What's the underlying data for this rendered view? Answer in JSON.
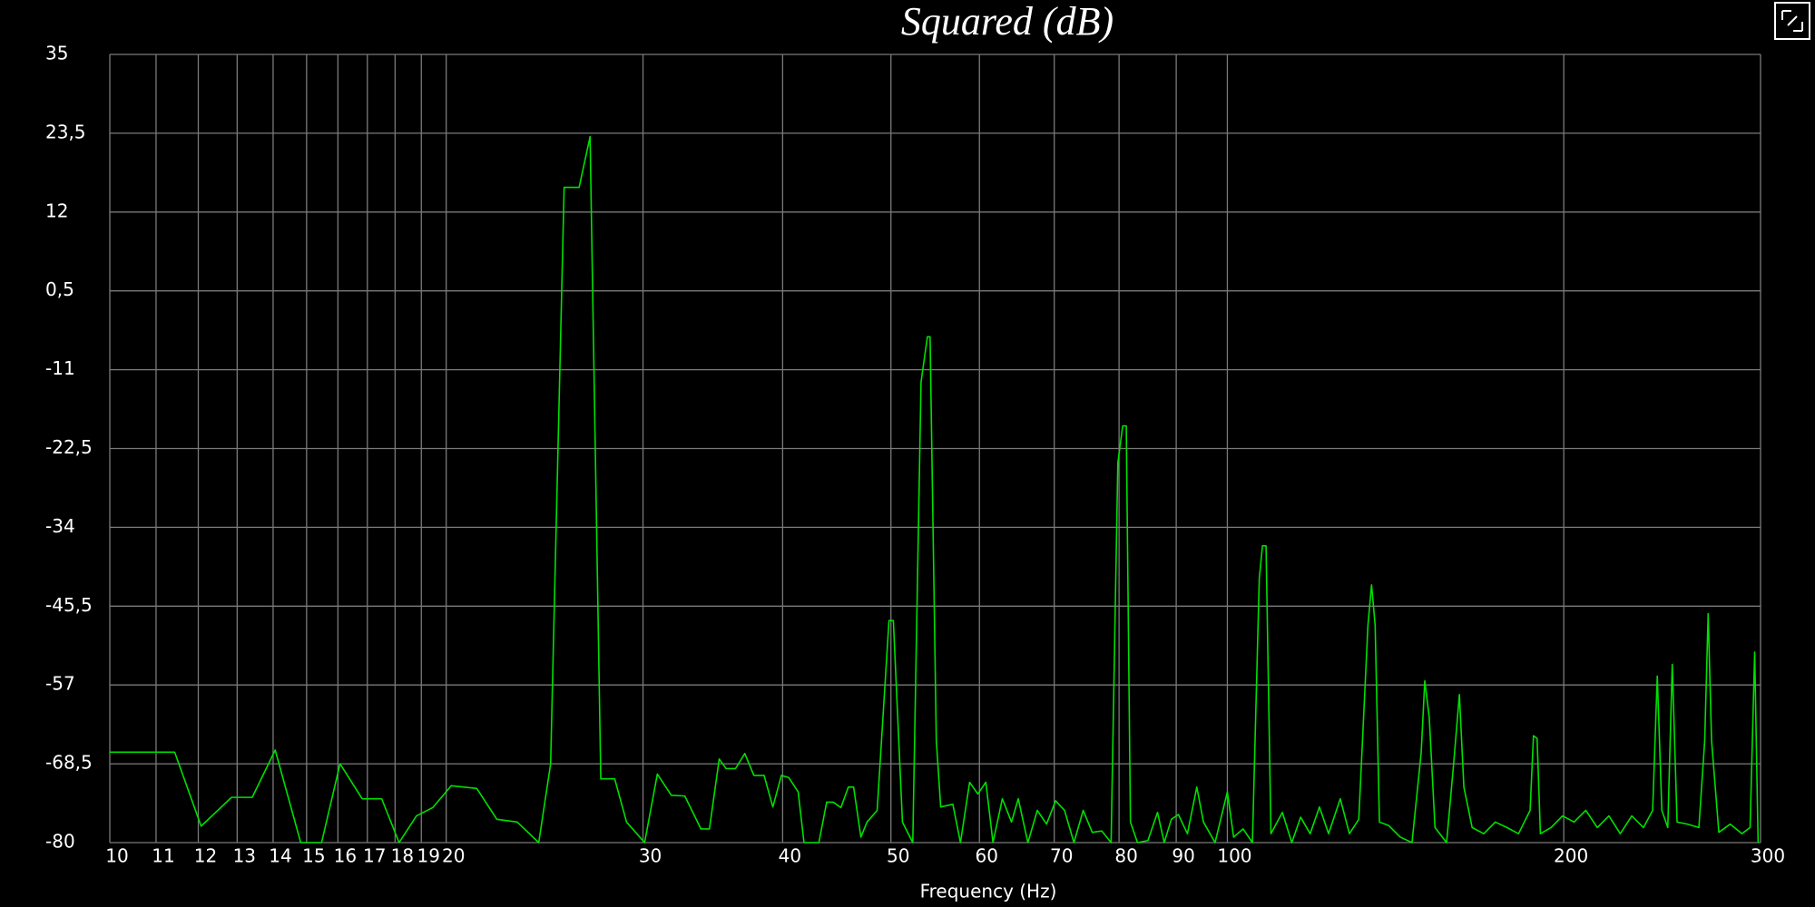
{
  "chart_data": {
    "type": "line",
    "title": "Squared (dB)",
    "x_label": "Frequency (Hz)",
    "log_x": true,
    "grid": true,
    "xlim": [
      10,
      300
    ],
    "xticks": [
      10,
      11,
      12,
      13,
      14,
      15,
      16,
      17,
      18,
      19,
      20,
      30,
      40,
      50,
      60,
      70,
      80,
      90,
      100,
      200,
      300
    ],
    "ylim": [
      -80,
      35
    ],
    "yticks": [
      -80,
      {
        "value": -68.5,
        "label": "-68,5"
      },
      -57,
      {
        "value": -45.5,
        "label": "-45,5"
      },
      -34,
      {
        "value": -22.5,
        "label": "-22,5"
      },
      -11,
      {
        "value": 0.5,
        "label": "0,5"
      },
      12,
      {
        "value": 23.5,
        "label": "23,5"
      },
      35
    ],
    "series": [
      {
        "color": "#00e000",
        "x": [
          10,
          11.43,
          12.07,
          12.85,
          13.41,
          14.06,
          14.82,
          15.47,
          16.07,
          16.82,
          17.51,
          18.15,
          18.81,
          19.45,
          20.21,
          21.3,
          22.2,
          23.15,
          24.2,
          24.8,
          25.5,
          26.3,
          26.9,
          27.5,
          28.3,
          29.0,
          30.1,
          30.9,
          31.8,
          32.7,
          33.8,
          34.4,
          35.1,
          35.6,
          36.3,
          37.0,
          37.7,
          38.5,
          39.2,
          39.9,
          40.5,
          41.3,
          41.8,
          43.1,
          43.8,
          44.4,
          45.1,
          45.8,
          46.3,
          47.0,
          47.6,
          48.6,
          49.8,
          50.25,
          51.2,
          52.3,
          53.2,
          53.9,
          54.2,
          54.9,
          55.4,
          56.8,
          57.7,
          58.8,
          59.8,
          60.8,
          61.7,
          62.9,
          64.1,
          65.0,
          66.3,
          67.6,
          68.9,
          70.2,
          71.5,
          72.9,
          74.3,
          75.7,
          77.2,
          78.7,
          79.8,
          80.6,
          81.2,
          81.9,
          83.1,
          84.9,
          86.6,
          87.8,
          89.1,
          90.4,
          92.1,
          93.9,
          95.2,
          97.5,
          100.0,
          101.3,
          103.3,
          105.3,
          106.8,
          107.5,
          108.3,
          109.4,
          112.0,
          114.2,
          116.3,
          118.6,
          120.9,
          123.2,
          126.2,
          128.6,
          131.1,
          133.6,
          134.6,
          135.6,
          136.8,
          139.4,
          142.8,
          146.3,
          149.1,
          150.2,
          151.6,
          153.4,
          157.1,
          159.4,
          161.3,
          162.8,
          165.6,
          169.6,
          173.7,
          177.9,
          182.2,
          186.6,
          187.9,
          189.3,
          190.6,
          194.8,
          199.5,
          204.3,
          209.3,
          214.3,
          219.5,
          224.7,
          230.1,
          235.7,
          240.2,
          242.5,
          244.8,
          247.8,
          250.1,
          252.6,
          258.0,
          264.2,
          267.4,
          269.3,
          271.2,
          275.3,
          281.8,
          288.7,
          293.6,
          296.4,
          298.5
        ],
        "values": [
          -66.8,
          -66.8,
          -77.6,
          -73.4,
          -73.4,
          -66.5,
          -80,
          -80,
          -68.5,
          -73.6,
          -73.6,
          -80,
          -76.1,
          -74.9,
          -71.7,
          -72.1,
          -76.6,
          -77.0,
          -80,
          -68.5,
          15.6,
          15.6,
          23.0,
          -70.7,
          -70.7,
          -77,
          -80,
          -70,
          -73.1,
          -73.2,
          -78,
          -78,
          -67.8,
          -69.2,
          -69.2,
          -67,
          -70.2,
          -70.2,
          -74.8,
          -70.2,
          -70.5,
          -72.6,
          -80,
          -80,
          -74.1,
          -74.1,
          -74.9,
          -71.9,
          -71.9,
          -79.2,
          -77,
          -75.3,
          -47.6,
          -47.6,
          -77,
          -80,
          -12.8,
          -6.2,
          -6.2,
          -65.1,
          -74.8,
          -74.4,
          -80,
          -71.2,
          -72.9,
          -71.2,
          -80,
          -73.6,
          -77,
          -73.6,
          -80,
          -75.3,
          -77.3,
          -73.9,
          -75.3,
          -80,
          -75.3,
          -78.5,
          -78.3,
          -80,
          -24.6,
          -19.2,
          -19.2,
          -77,
          -80,
          -79.7,
          -75.6,
          -80,
          -76.6,
          -75.9,
          -78.7,
          -71.9,
          -77,
          -80,
          -72.6,
          -79.2,
          -78,
          -80,
          -41.5,
          -36.7,
          -36.7,
          -78.7,
          -75.6,
          -80,
          -76.3,
          -78.7,
          -74.8,
          -78.7,
          -73.6,
          -78.7,
          -76.6,
          -48.3,
          -42.4,
          -48.3,
          -77,
          -77.5,
          -79.2,
          -80,
          -66.8,
          -56.4,
          -61.8,
          -77.8,
          -80,
          -68.5,
          -58.4,
          -71.9,
          -77.8,
          -78.7,
          -77,
          -77.8,
          -78.7,
          -75.3,
          -64.4,
          -64.8,
          -78.7,
          -77.8,
          -76.1,
          -77,
          -75.3,
          -77.8,
          -76.1,
          -78.7,
          -76.1,
          -77.8,
          -75.3,
          -55.7,
          -75.3,
          -77.8,
          -54.0,
          -77,
          -77.3,
          -77.8,
          -65.1,
          -46.6,
          -65.1,
          -78.5,
          -77.3,
          -78.7,
          -77.8,
          -52.2,
          -80
        ]
      }
    ]
  }
}
